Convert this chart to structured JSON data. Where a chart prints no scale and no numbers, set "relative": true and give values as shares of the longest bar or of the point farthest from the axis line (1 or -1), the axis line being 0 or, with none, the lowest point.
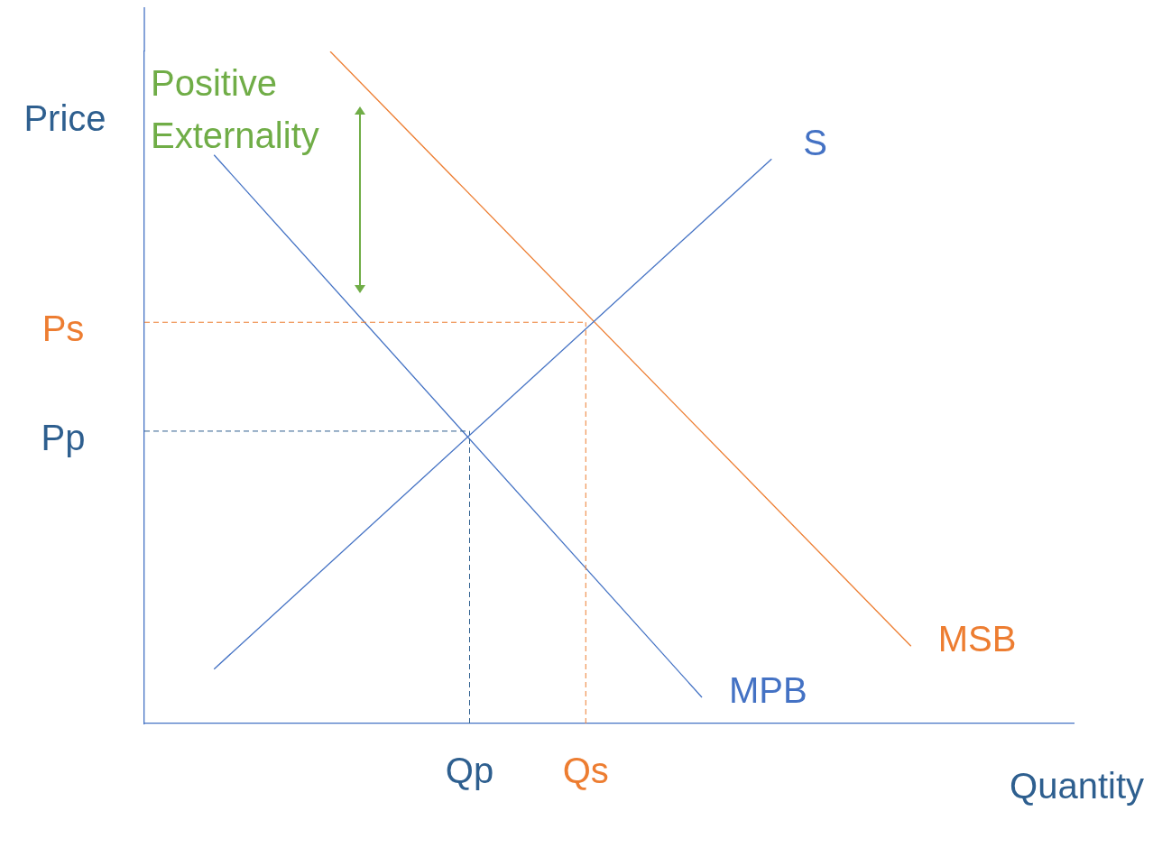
{
  "chart_data": {
    "type": "line",
    "relative": true,
    "xlabel": "Quantity",
    "ylabel": "Price",
    "categories": [
      null,
      null,
      null,
      null,
      null,
      null,
      null,
      null,
      null,
      null,
      null,
      null,
      null,
      null,
      "Qp",
      null,
      null,
      null,
      null,
      "Qs",
      null,
      null,
      null,
      null,
      null,
      null,
      null,
      null,
      null,
      null,
      null,
      null,
      null,
      null,
      null,
      null,
      null,
      null,
      null,
      null,
      null
    ],
    "series": [
      {
        "name": "S",
        "color": "#4472c4",
        "values": [
          null,
          null,
          null,
          0.081,
          null,
          null,
          null,
          null,
          null,
          null,
          null,
          null,
          null,
          null,
          null,
          null,
          null,
          null,
          null,
          null,
          null,
          null,
          null,
          null,
          null,
          null,
          null,
          0.84,
          null,
          null,
          null,
          null,
          null,
          null,
          null,
          null,
          null,
          null,
          null,
          null,
          null
        ]
      },
      {
        "name": "MPB",
        "color": "#4472c4",
        "values": [
          null,
          null,
          null,
          0.846,
          null,
          null,
          null,
          null,
          null,
          null,
          null,
          null,
          null,
          null,
          null,
          null,
          null,
          null,
          null,
          null,
          null,
          null,
          null,
          null,
          0.039,
          null,
          null,
          null,
          null,
          null,
          null,
          null,
          null,
          null,
          null,
          null,
          null,
          null,
          null,
          null,
          null
        ]
      },
      {
        "name": "MSB",
        "color": "#ed7d31",
        "values": [
          null,
          null,
          null,
          null,
          null,
          null,
          null,
          null,
          1.0,
          null,
          null,
          null,
          null,
          null,
          null,
          null,
          null,
          null,
          null,
          null,
          null,
          null,
          null,
          null,
          null,
          null,
          null,
          null,
          null,
          null,
          null,
          null,
          null,
          0.115,
          null,
          null,
          null,
          null,
          null,
          null,
          null
        ]
      }
    ],
    "ref_lines": [
      {
        "axis": "y",
        "value": 0.597,
        "label": "Ps",
        "color": "#ed7d31",
        "line_style": "dashed"
      },
      {
        "axis": "y",
        "value": 0.435,
        "label": "Pp",
        "color": "#2e5f8f",
        "line_style": "dashed"
      },
      {
        "axis": "x",
        "value": "Qp",
        "color": "#2e5f8f",
        "line_style": "dashed"
      },
      {
        "axis": "x",
        "value": "Qs",
        "color": "#ed7d31",
        "line_style": "dashed"
      }
    ],
    "annotations": [
      "Positive Externality"
    ],
    "legend": false,
    "grid": false,
    "marker": "none",
    "line_style": "solid"
  }
}
